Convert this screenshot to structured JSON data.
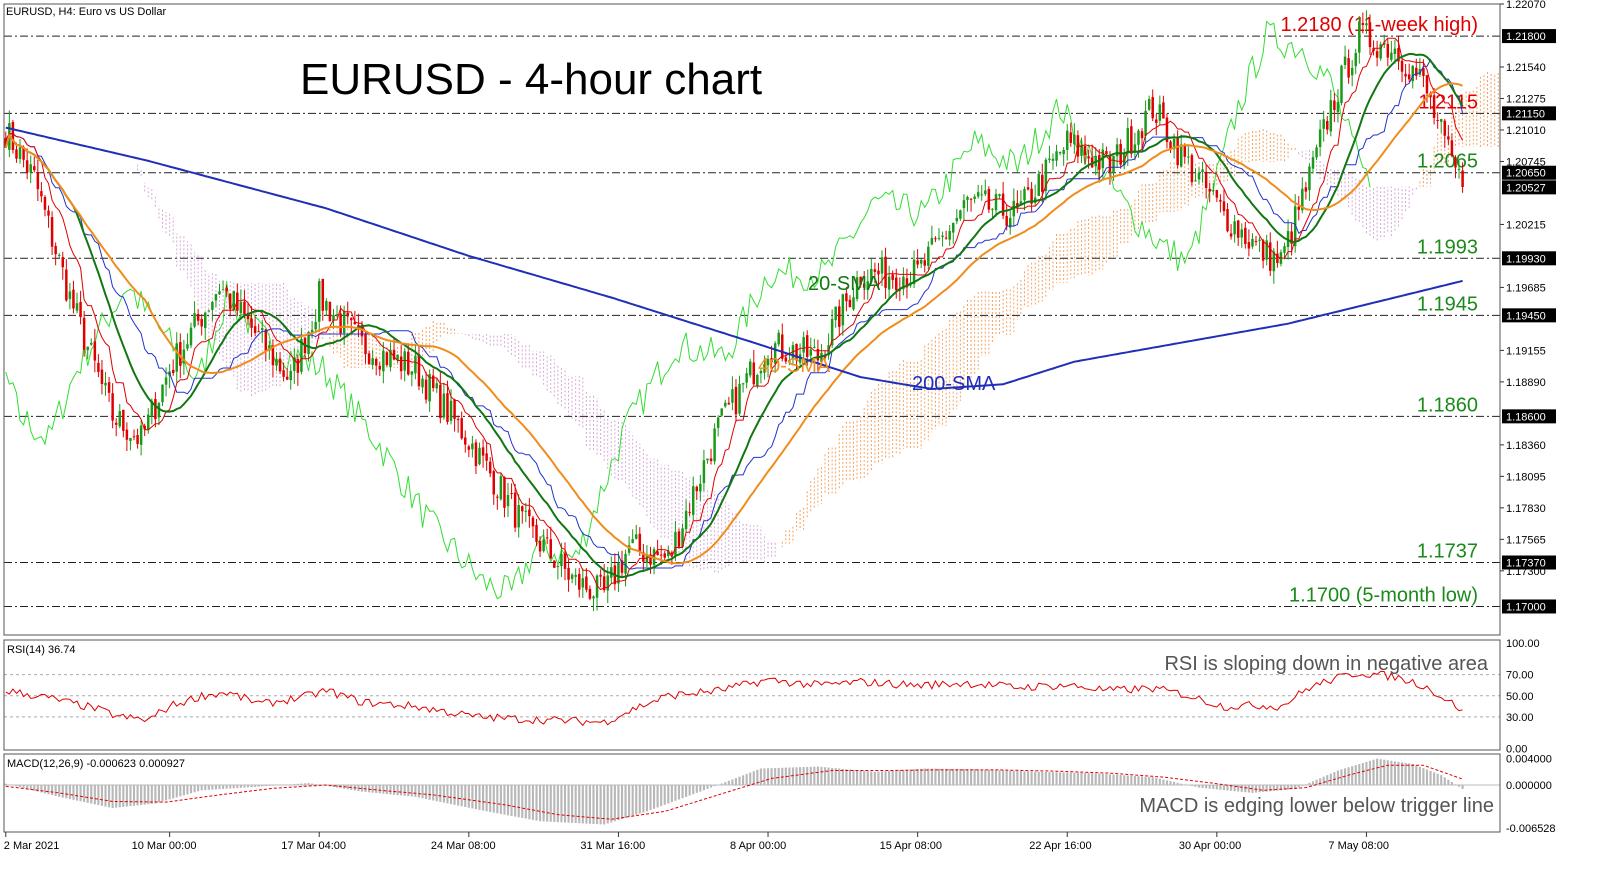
{
  "header": {
    "symbol_label": "EURUSD, H4:  Euro vs US Dollar",
    "title": "EURUSD - 4-hour chart"
  },
  "colors": {
    "bull": "#1a9a1a",
    "bear": "#e00000",
    "sma20": "#117711",
    "sma40": "#f08c1c",
    "sma200": "#1f2fb8",
    "kijun": "#2233cc",
    "tenkan": "#e00000",
    "chikou": "#33dd33",
    "cloud_bull": "#f4a262",
    "cloud_bear": "#d6a8d8",
    "red_label": "#e00000",
    "green_label": "#1a8a1a"
  },
  "chart_data": [
    {
      "type": "candlestick",
      "name": "price",
      "ylim": [
        1.1676,
        1.2207
      ],
      "yticks": [
        "1.22070",
        "1.21540",
        "1.21275",
        "1.21010",
        "1.20745",
        "1.20215",
        "1.19685",
        "1.19155",
        "1.18890",
        "1.18360",
        "1.18095",
        "1.17830",
        "1.17565",
        "1.17300"
      ],
      "xticks": [
        "2 Mar 2021",
        "10 Mar 00:00",
        "17 Mar 04:00",
        "24 Mar 08:00",
        "31 Mar 16:00",
        "8 Apr 00:00",
        "15 Apr 08:00",
        "22 Apr 16:00",
        "30 Apr 00:00",
        "7 May 08:00"
      ],
      "xtick_index": [
        0,
        46,
        88,
        130,
        172,
        214,
        256,
        298,
        340,
        382
      ],
      "n_bars": 420,
      "levels": [
        {
          "value": 1.218,
          "tag": "1.21800",
          "label": "1.2180 (11-week high)",
          "color": "red"
        },
        {
          "value": 1.2115,
          "tag": "1.21150",
          "label": "1.2115",
          "color": "red"
        },
        {
          "value": 1.2065,
          "tag": "1.20650",
          "label": "1.2065",
          "color": "green"
        },
        {
          "value": 1.1993,
          "tag": "1.19930",
          "label": "1.1993",
          "color": "green"
        },
        {
          "value": 1.1945,
          "tag": "1.19450",
          "label": "1.1945",
          "color": "green"
        },
        {
          "value": 1.186,
          "tag": "1.18600",
          "label": "1.1860",
          "color": "green"
        },
        {
          "value": 1.1737,
          "tag": "1.17370",
          "label": "1.1737",
          "color": "green"
        },
        {
          "value": 1.17,
          "tag": "1.17000",
          "label": "1.1700 (5-month low)",
          "color": "green"
        }
      ],
      "current_price": {
        "value": 1.20527,
        "tag": "1.20527"
      },
      "anchors": [
        [
          0,
          1.21
        ],
        [
          8,
          1.206
        ],
        [
          18,
          1.196
        ],
        [
          30,
          1.186
        ],
        [
          38,
          1.184
        ],
        [
          46,
          1.19
        ],
        [
          60,
          1.197
        ],
        [
          70,
          1.193
        ],
        [
          80,
          1.189
        ],
        [
          88,
          1.196
        ],
        [
          100,
          1.192
        ],
        [
          115,
          1.19
        ],
        [
          130,
          1.184
        ],
        [
          145,
          1.177
        ],
        [
          160,
          1.172
        ],
        [
          168,
          1.171
        ],
        [
          175,
          1.175
        ],
        [
          186,
          1.174
        ],
        [
          200,
          1.185
        ],
        [
          214,
          1.192
        ],
        [
          228,
          1.191
        ],
        [
          240,
          1.198
        ],
        [
          256,
          1.198
        ],
        [
          270,
          1.204
        ],
        [
          284,
          1.203
        ],
        [
          298,
          1.209
        ],
        [
          310,
          1.207
        ],
        [
          322,
          1.212
        ],
        [
          330,
          1.208
        ],
        [
          342,
          1.203
        ],
        [
          352,
          1.2
        ],
        [
          358,
          1.199
        ],
        [
          366,
          1.206
        ],
        [
          372,
          1.212
        ],
        [
          380,
          1.218
        ],
        [
          390,
          1.217
        ],
        [
          398,
          1.214
        ],
        [
          405,
          1.208
        ],
        [
          409,
          1.2053
        ]
      ],
      "last_bar": 409,
      "sma_labels": {
        "sma20": "20-SMA",
        "sma40": "40-SMA",
        "sma200": "200-SMA"
      },
      "sma200_anchors": [
        [
          0,
          1.2103
        ],
        [
          40,
          1.2075
        ],
        [
          90,
          1.2035
        ],
        [
          130,
          1.1995
        ],
        [
          170,
          1.196
        ],
        [
          210,
          1.1922
        ],
        [
          240,
          1.1893
        ],
        [
          260,
          1.1883
        ],
        [
          280,
          1.1887
        ],
        [
          300,
          1.1906
        ],
        [
          330,
          1.1922
        ],
        [
          360,
          1.1938
        ],
        [
          390,
          1.196
        ],
        [
          409,
          1.1974
        ]
      ]
    },
    {
      "type": "line",
      "name": "RSI(14)",
      "label": "RSI(14) 36.74",
      "ylim": [
        0,
        100
      ],
      "yticks": [
        "100.00",
        "70.00",
        "50.00",
        "30.00",
        "0.00"
      ],
      "annotation": "RSI is sloping down in negative area",
      "anchors": [
        [
          0,
          55
        ],
        [
          12,
          48
        ],
        [
          25,
          38
        ],
        [
          32,
          30
        ],
        [
          40,
          27
        ],
        [
          46,
          40
        ],
        [
          55,
          50
        ],
        [
          62,
          53
        ],
        [
          72,
          42
        ],
        [
          85,
          50
        ],
        [
          90,
          55
        ],
        [
          100,
          44
        ],
        [
          115,
          40
        ],
        [
          132,
          30
        ],
        [
          145,
          28
        ],
        [
          160,
          26
        ],
        [
          168,
          25
        ],
        [
          178,
          40
        ],
        [
          186,
          50
        ],
        [
          200,
          55
        ],
        [
          214,
          65
        ],
        [
          228,
          60
        ],
        [
          240,
          63
        ],
        [
          256,
          60
        ],
        [
          270,
          62
        ],
        [
          284,
          58
        ],
        [
          298,
          60
        ],
        [
          310,
          55
        ],
        [
          322,
          57
        ],
        [
          330,
          52
        ],
        [
          342,
          40
        ],
        [
          352,
          41
        ],
        [
          358,
          40
        ],
        [
          366,
          58
        ],
        [
          372,
          65
        ],
        [
          380,
          72
        ],
        [
          390,
          68
        ],
        [
          398,
          60
        ],
        [
          405,
          45
        ],
        [
          409,
          36.74
        ]
      ]
    },
    {
      "type": "bar+line",
      "name": "MACD(12,26,9)",
      "label": "MACD(12,26,9) -0.000623 0.000927",
      "ylim": [
        -0.006528,
        0.0041
      ],
      "yticks": [
        "0.004000",
        "0.000000",
        "-0.006528"
      ],
      "annotation": "MACD is edging lower below trigger line",
      "macd_anchors": [
        [
          0,
          0.0002
        ],
        [
          15,
          -0.0018
        ],
        [
          30,
          -0.0035
        ],
        [
          42,
          -0.0028
        ],
        [
          55,
          -0.0008
        ],
        [
          70,
          -0.0003
        ],
        [
          85,
          0.0003
        ],
        [
          100,
          -0.001
        ],
        [
          115,
          -0.0018
        ],
        [
          135,
          -0.004
        ],
        [
          150,
          -0.0055
        ],
        [
          168,
          -0.006
        ],
        [
          180,
          -0.004
        ],
        [
          195,
          -0.001
        ],
        [
          212,
          0.0025
        ],
        [
          228,
          0.0028
        ],
        [
          244,
          0.002
        ],
        [
          258,
          0.0025
        ],
        [
          272,
          0.0024
        ],
        [
          290,
          0.002
        ],
        [
          305,
          0.0018
        ],
        [
          322,
          0.0012
        ],
        [
          335,
          -0.0004
        ],
        [
          350,
          -0.0012
        ],
        [
          362,
          -0.0006
        ],
        [
          374,
          0.0022
        ],
        [
          385,
          0.004
        ],
        [
          395,
          0.0032
        ],
        [
          403,
          0.0015
        ],
        [
          409,
          -0.0006
        ]
      ],
      "signal_anchors": [
        [
          0,
          -0.0002
        ],
        [
          15,
          -0.0012
        ],
        [
          30,
          -0.0025
        ],
        [
          45,
          -0.0026
        ],
        [
          60,
          -0.0015
        ],
        [
          75,
          -0.0005
        ],
        [
          90,
          0.0
        ],
        [
          105,
          -0.0008
        ],
        [
          120,
          -0.0015
        ],
        [
          140,
          -0.003
        ],
        [
          155,
          -0.0045
        ],
        [
          170,
          -0.0052
        ],
        [
          185,
          -0.004
        ],
        [
          200,
          -0.0015
        ],
        [
          215,
          0.001
        ],
        [
          232,
          0.0022
        ],
        [
          248,
          0.0022
        ],
        [
          262,
          0.0023
        ],
        [
          278,
          0.0023
        ],
        [
          295,
          0.0021
        ],
        [
          310,
          0.0018
        ],
        [
          325,
          0.0012
        ],
        [
          340,
          0.0002
        ],
        [
          353,
          -0.0008
        ],
        [
          365,
          -0.0004
        ],
        [
          377,
          0.0015
        ],
        [
          388,
          0.003
        ],
        [
          398,
          0.003
        ],
        [
          409,
          0.0009
        ]
      ]
    }
  ]
}
